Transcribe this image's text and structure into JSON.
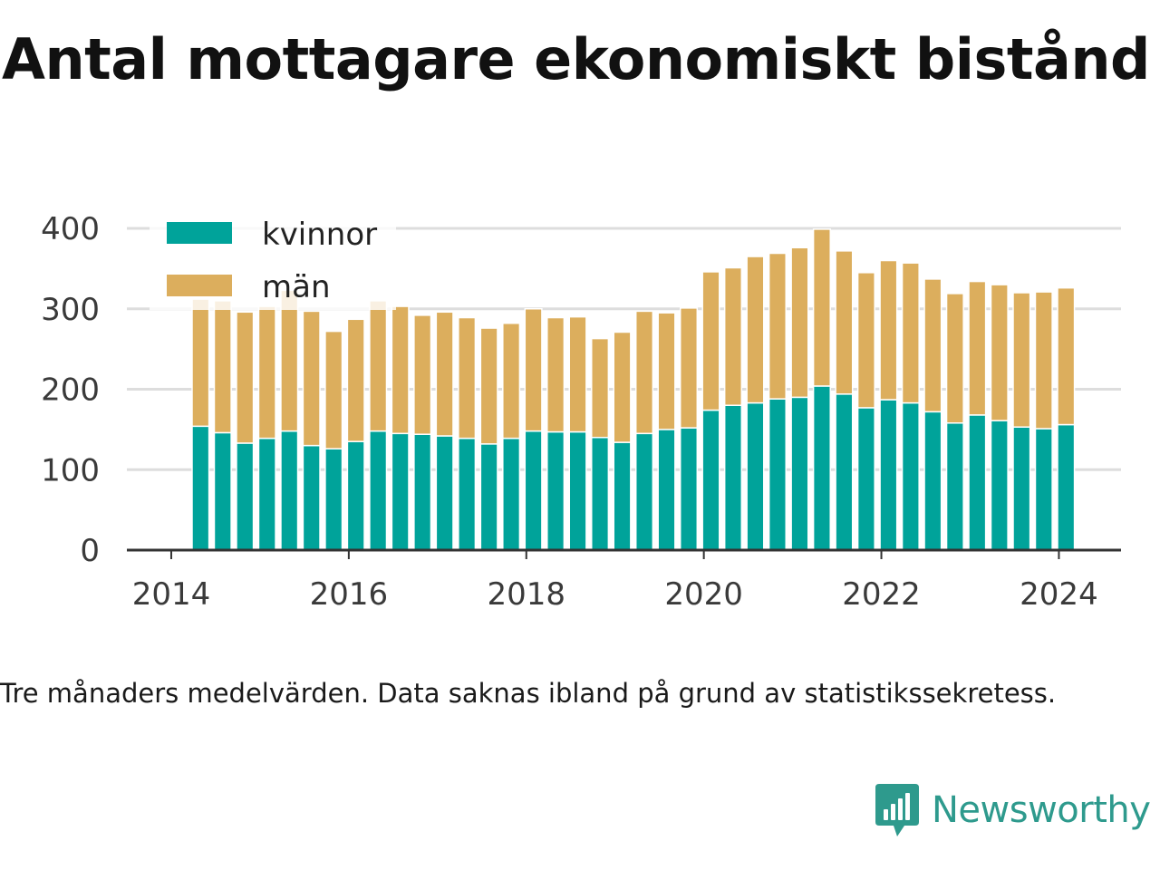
{
  "title": "Antal mottagare ekonomiskt bistånd",
  "note": "Tre månaders medelvärden. Data saknas ibland på grund av statistikssekretess.",
  "brand": {
    "name": "Newsworthy",
    "icon": "newsworthy-logo-icon",
    "color": "#2e9a8d"
  },
  "colors": {
    "kvinnor": "#00a39a",
    "man": "#dcae5d",
    "grid": "#dddddd",
    "axis": "#333333"
  },
  "chart_data": {
    "type": "bar",
    "stacked": true,
    "title": "Antal mottagare ekonomiskt bistånd",
    "xlabel": "",
    "ylabel": "",
    "ylim": [
      0,
      400
    ],
    "yticks": [
      0,
      100,
      200,
      300,
      400
    ],
    "xlim": [
      2013.5,
      2024.7
    ],
    "xticks": [
      "2014",
      "2016",
      "2018",
      "2020",
      "2022",
      "2024"
    ],
    "grid": true,
    "legend": "top-left",
    "x": [
      2014.33,
      2014.58,
      2014.83,
      2015.08,
      2015.33,
      2015.58,
      2015.83,
      2016.08,
      2016.33,
      2016.58,
      2016.83,
      2017.08,
      2017.33,
      2017.58,
      2017.83,
      2018.08,
      2018.33,
      2018.58,
      2018.83,
      2019.08,
      2019.33,
      2019.58,
      2019.83,
      2020.08,
      2020.33,
      2020.58,
      2020.83,
      2021.08,
      2021.33,
      2021.58,
      2021.83,
      2022.08,
      2022.33,
      2022.58,
      2022.83,
      2023.08,
      2023.33,
      2023.58,
      2023.83,
      2024.08
    ],
    "series": [
      {
        "name": "kvinnor",
        "color": "#00a39a",
        "values": [
          154,
          146,
          133,
          139,
          148,
          130,
          126,
          135,
          148,
          145,
          144,
          142,
          139,
          132,
          139,
          148,
          147,
          147,
          140,
          134,
          145,
          150,
          152,
          174,
          180,
          183,
          188,
          190,
          204,
          194,
          177,
          187,
          183,
          172,
          158,
          168,
          161,
          153,
          151,
          156
        ]
      },
      {
        "name": "män",
        "color": "#dcae5d",
        "values": [
          158,
          164,
          163,
          164,
          175,
          167,
          146,
          152,
          162,
          158,
          148,
          154,
          150,
          144,
          143,
          152,
          142,
          143,
          123,
          137,
          152,
          145,
          149,
          172,
          171,
          182,
          181,
          186,
          195,
          178,
          168,
          173,
          174,
          165,
          161,
          166,
          169,
          167,
          170,
          170
        ]
      }
    ]
  }
}
